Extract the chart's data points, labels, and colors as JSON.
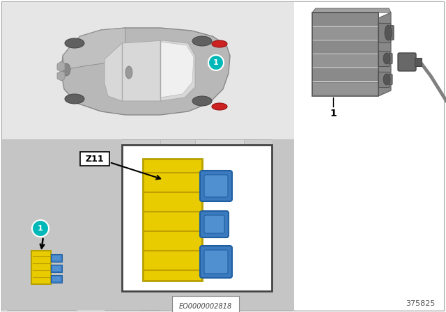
{
  "bg_color": "#ffffff",
  "teal_color": "#00b8b8",
  "yellow_color": "#e8cc00",
  "blue_connector_color": "#3b7abf",
  "diagram_id": "EO0000002818",
  "part_number": "375825",
  "z11_label": "Z11"
}
